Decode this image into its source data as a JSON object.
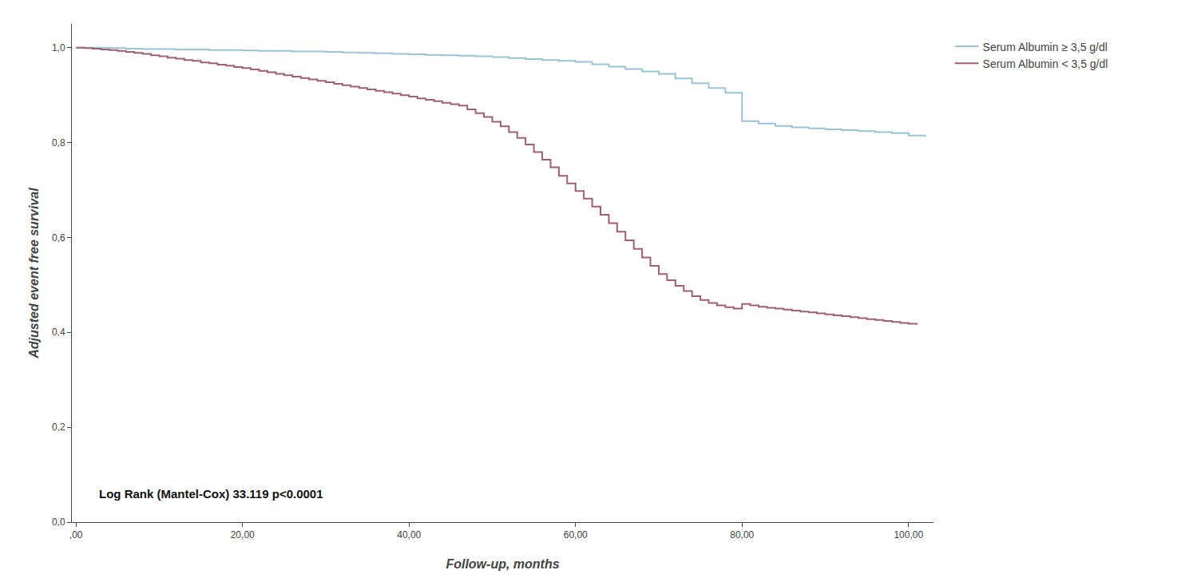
{
  "chart_data": {
    "type": "step",
    "xlabel": "Follow-up, months",
    "ylabel": "Adjusted event free survival",
    "annotations": [
      "Log Rank (Mantel-Cox) 33.119 p<0.0001"
    ],
    "series": [
      {
        "name": "Serum Albumin ≥ 3,5 g/dl",
        "color": "#9ac4d5",
        "x": [
          0,
          2,
          4,
          6,
          8,
          10,
          12,
          14,
          16,
          18,
          20,
          22,
          24,
          26,
          28,
          30,
          32,
          34,
          36,
          38,
          40,
          42,
          44,
          46,
          48,
          50,
          52,
          54,
          56,
          58,
          60,
          62,
          64,
          66,
          68,
          70,
          72,
          74,
          76,
          78,
          80,
          82,
          84,
          86,
          88,
          90,
          92,
          94,
          96,
          98,
          100,
          102
        ],
        "values": [
          1.0,
          1.0,
          0.999,
          0.998,
          0.997,
          0.997,
          0.996,
          0.996,
          0.995,
          0.995,
          0.994,
          0.993,
          0.993,
          0.992,
          0.992,
          0.991,
          0.99,
          0.989,
          0.988,
          0.987,
          0.986,
          0.985,
          0.984,
          0.983,
          0.982,
          0.98,
          0.978,
          0.976,
          0.974,
          0.972,
          0.97,
          0.965,
          0.96,
          0.955,
          0.95,
          0.945,
          0.935,
          0.925,
          0.915,
          0.905,
          0.845,
          0.84,
          0.835,
          0.832,
          0.83,
          0.828,
          0.826,
          0.824,
          0.822,
          0.82,
          0.815,
          0.812
        ]
      },
      {
        "name": "Serum Albumin < 3,5 g/dl",
        "color": "#a06070",
        "x": [
          0,
          1,
          2,
          3,
          4,
          5,
          6,
          7,
          8,
          9,
          10,
          11,
          12,
          13,
          14,
          15,
          16,
          17,
          18,
          19,
          20,
          21,
          22,
          23,
          24,
          25,
          26,
          27,
          28,
          29,
          30,
          31,
          32,
          33,
          34,
          35,
          36,
          37,
          38,
          39,
          40,
          41,
          42,
          43,
          44,
          45,
          46,
          47,
          48,
          49,
          50,
          51,
          52,
          53,
          54,
          55,
          56,
          57,
          58,
          59,
          60,
          61,
          62,
          63,
          64,
          65,
          66,
          67,
          68,
          69,
          70,
          71,
          72,
          73,
          74,
          75,
          76,
          77,
          78,
          79,
          80,
          81,
          82,
          83,
          84,
          85,
          86,
          87,
          88,
          89,
          90,
          91,
          92,
          93,
          94,
          95,
          96,
          97,
          98,
          99,
          100,
          101
        ],
        "values": [
          1.0,
          0.999,
          0.998,
          0.996,
          0.995,
          0.993,
          0.991,
          0.989,
          0.987,
          0.984,
          0.982,
          0.979,
          0.977,
          0.974,
          0.972,
          0.969,
          0.967,
          0.964,
          0.962,
          0.959,
          0.957,
          0.954,
          0.951,
          0.948,
          0.945,
          0.942,
          0.939,
          0.936,
          0.933,
          0.93,
          0.927,
          0.924,
          0.921,
          0.918,
          0.915,
          0.912,
          0.909,
          0.906,
          0.903,
          0.9,
          0.897,
          0.893,
          0.89,
          0.887,
          0.884,
          0.881,
          0.878,
          0.87,
          0.862,
          0.854,
          0.844,
          0.834,
          0.822,
          0.81,
          0.796,
          0.78,
          0.764,
          0.748,
          0.73,
          0.714,
          0.698,
          0.682,
          0.665,
          0.648,
          0.63,
          0.612,
          0.594,
          0.576,
          0.558,
          0.54,
          0.523,
          0.51,
          0.498,
          0.487,
          0.476,
          0.468,
          0.462,
          0.457,
          0.453,
          0.45,
          0.46,
          0.457,
          0.454,
          0.452,
          0.45,
          0.448,
          0.446,
          0.444,
          0.442,
          0.44,
          0.438,
          0.436,
          0.434,
          0.432,
          0.43,
          0.428,
          0.426,
          0.424,
          0.422,
          0.42,
          0.418,
          0.416
        ]
      }
    ],
    "xlim": [
      -0.5,
      103
    ],
    "ylim": [
      0.0,
      1.05
    ],
    "xticks": [
      {
        "value": 0,
        "label": ",00"
      },
      {
        "value": 20,
        "label": "20,00"
      },
      {
        "value": 40,
        "label": "40,00"
      },
      {
        "value": 60,
        "label": "60,00"
      },
      {
        "value": 80,
        "label": "80,00"
      },
      {
        "value": 100,
        "label": "100,00"
      }
    ],
    "yticks": [
      {
        "value": 0.0,
        "label": "0,0"
      },
      {
        "value": 0.2,
        "label": "0,2"
      },
      {
        "value": 0.4,
        "label": "0,4"
      },
      {
        "value": 0.6,
        "label": "0,6"
      },
      {
        "value": 0.8,
        "label": "0,8"
      },
      {
        "value": 1.0,
        "label": "1,0"
      }
    ],
    "grid": false,
    "legend": "upper right"
  }
}
